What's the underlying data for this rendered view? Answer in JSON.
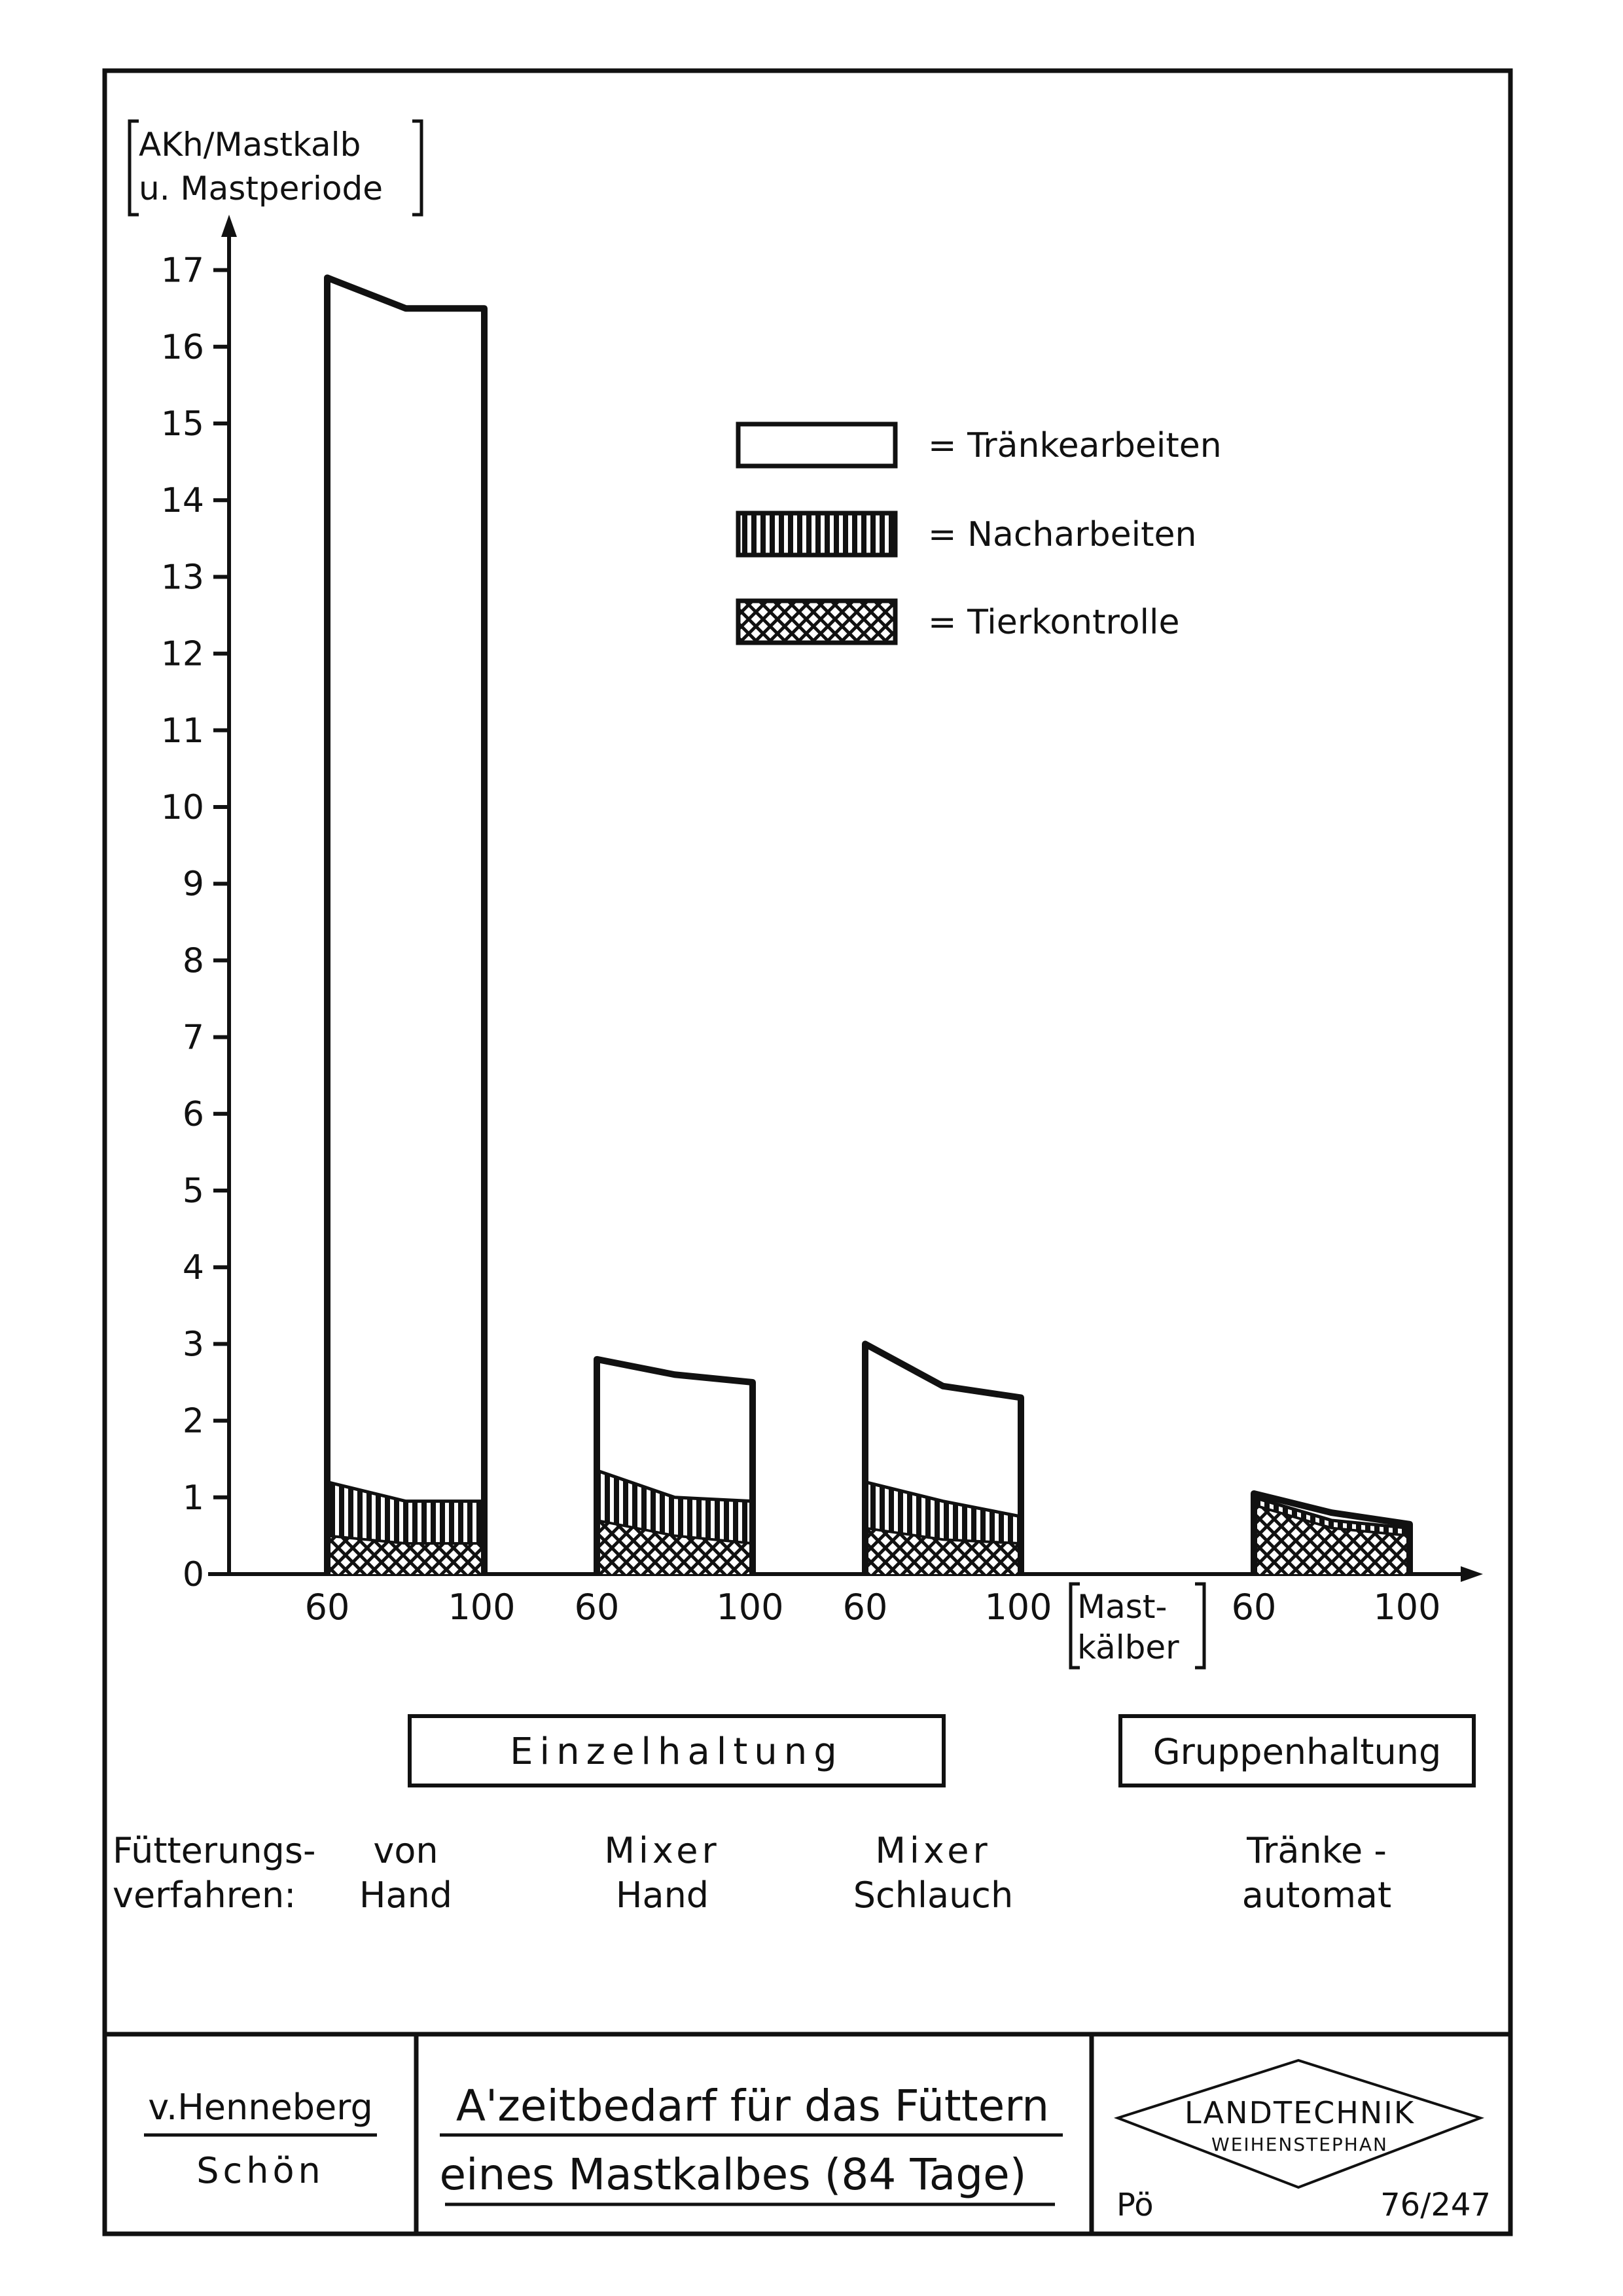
{
  "chart_data": {
    "type": "stacked-area-bar",
    "ylabel_line1": "AKh/Mastkalb",
    "ylabel_line2": "u. Mastperiode",
    "ylim": [
      0,
      17
    ],
    "yticks": [
      "0",
      "1",
      "2",
      "3",
      "4",
      "5",
      "6",
      "7",
      "8",
      "9",
      "10",
      "11",
      "12",
      "13",
      "14",
      "15",
      "16",
      "17"
    ],
    "x_unit_line1": "Mast-",
    "x_unit_line2": "kälber",
    "legend": [
      {
        "key": "traenke",
        "label": "= Tränkearbeiten",
        "pattern": "white"
      },
      {
        "key": "nach",
        "label": "= Nacharbeiten",
        "pattern": "vertical-lines"
      },
      {
        "key": "tier",
        "label": "= Tierkontrolle",
        "pattern": "crosshatch"
      }
    ],
    "groups": [
      {
        "verfahren_line1": "von",
        "verfahren_line2": "Hand",
        "x": [
          "60",
          "100"
        ],
        "total": [
          16.9,
          16.5,
          16.5
        ],
        "nach": [
          1.2,
          0.95,
          0.95
        ],
        "tier": [
          0.5,
          0.4,
          0.4
        ]
      },
      {
        "verfahren_line1": "Mixer",
        "verfahren_line2": "Hand",
        "x": [
          "60",
          "100"
        ],
        "total": [
          2.8,
          2.6,
          2.5
        ],
        "nach": [
          1.35,
          1.0,
          0.95
        ],
        "tier": [
          0.7,
          0.5,
          0.4
        ]
      },
      {
        "verfahren_line1": "Mixer",
        "verfahren_line2": "Schlauch",
        "x": [
          "60",
          "100"
        ],
        "total": [
          3.0,
          2.45,
          2.3
        ],
        "nach": [
          1.2,
          0.95,
          0.75
        ],
        "tier": [
          0.6,
          0.45,
          0.4
        ]
      },
      {
        "verfahren_line1": "Tränke -",
        "verfahren_line2": "automat",
        "x": [
          "60",
          "100"
        ],
        "total": [
          1.05,
          0.8,
          0.65
        ],
        "nach": [
          1.0,
          0.7,
          0.6
        ],
        "tier": [
          0.9,
          0.6,
          0.5
        ]
      }
    ],
    "haltung": [
      {
        "label": "Einzelhaltung"
      },
      {
        "label": "Gruppenhaltung"
      }
    ],
    "verfahren_label_line1": "Fütterungs-",
    "verfahren_label_line2": "verfahren:"
  },
  "footer": {
    "author1": "v.Henneberg",
    "author2": "Schön",
    "title_line1": "A'zeitbedarf für das Füttern",
    "title_line2": "eines Mastkalbes (84 Tage)",
    "logo_line1": "LANDTECHNIK",
    "logo_line2": "WEIHENSTEPHAN",
    "code_left": "Pö",
    "code_right": "76/247"
  }
}
